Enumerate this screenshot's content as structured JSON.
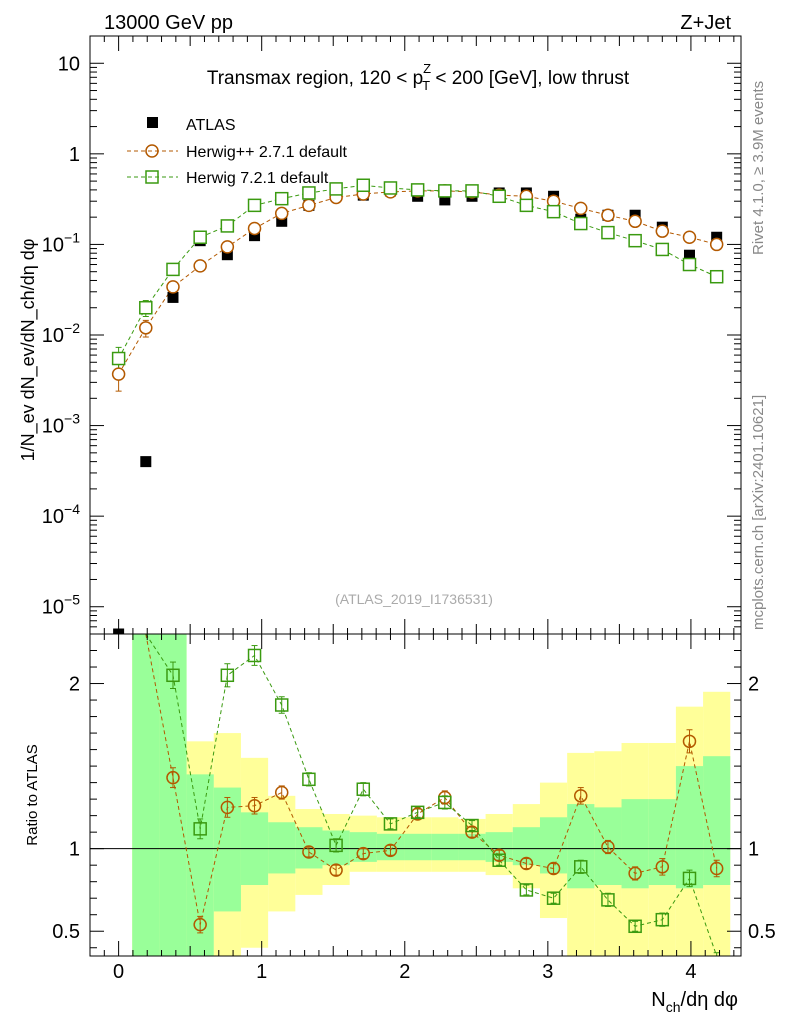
{
  "header": {
    "left": "13000 GeV pp",
    "right": "Z+Jet"
  },
  "side_labels": {
    "upper": "Rivet 4.1.0, ≥ 3.9M events",
    "lower": "mcplots.cern.ch [arXiv:2401.10621]"
  },
  "colors": {
    "atlas": "#000000",
    "herwigpp": "#b35900",
    "herwig7": "#3a9a10",
    "band_inner": "#99ff99",
    "band_outer": "#ffff99"
  },
  "chart_data": [
    {
      "type": "scatter",
      "panel": "main",
      "title": "Transmax region, 120 < p_T^Z < 200 [GeV], low thrust",
      "title_parts": {
        "pre": "Transmax region, 120 < p",
        "sup": "Z",
        "sub": "T",
        "post": " < 200 [GeV], low thrust"
      },
      "watermark": "(ATLAS_2019_I1736531)",
      "ylabel": "1/N_ev dN_ev/dN_ch/dη dφ",
      "yscale": "log",
      "xlim": [
        -0.2,
        4.35
      ],
      "ylim": [
        5e-06,
        20
      ],
      "xticks": [
        0,
        1,
        2,
        3,
        4
      ],
      "ytick_labels": [
        {
          "value": 10,
          "base": "10",
          "exp": ""
        },
        {
          "value": 1,
          "base": "1",
          "exp": ""
        },
        {
          "value": 0.1,
          "base": "10",
          "exp": "−1"
        },
        {
          "value": 0.01,
          "base": "10",
          "exp": "−2"
        },
        {
          "value": 0.001,
          "base": "10",
          "exp": "−3"
        },
        {
          "value": 0.0001,
          "base": "10",
          "exp": "−4"
        },
        {
          "value": 1e-05,
          "base": "10",
          "exp": "−5"
        }
      ],
      "legend": [
        "ATLAS",
        "Herwig++ 2.7.1 default",
        "Herwig 7.2.1 default"
      ],
      "series": [
        {
          "name": "ATLAS",
          "marker": "square-filled",
          "x": [
            0.0,
            0.19,
            0.38,
            0.57,
            0.76,
            0.95,
            1.14,
            1.33,
            1.52,
            1.71,
            1.9,
            2.09,
            2.28,
            2.47,
            2.66,
            2.85,
            3.04,
            3.23,
            3.42,
            3.61,
            3.8,
            3.99,
            4.18
          ],
          "y": [
            2.5e-06,
            0.0004,
            0.026,
            0.11,
            0.077,
            0.125,
            0.18,
            0.27,
            0.42,
            0.35,
            0.39,
            0.34,
            0.31,
            0.34,
            0.37,
            0.37,
            0.34,
            0.19,
            0.21,
            0.21,
            0.155,
            0.076,
            0.12
          ]
        },
        {
          "name": "Herwig++ 2.7.1 default",
          "marker": "circle-open",
          "x": [
            0.0,
            0.19,
            0.38,
            0.57,
            0.76,
            0.95,
            1.14,
            1.33,
            1.52,
            1.71,
            1.9,
            2.09,
            2.28,
            2.47,
            2.66,
            2.85,
            3.04,
            3.23,
            3.42,
            3.61,
            3.8,
            3.99,
            4.18
          ],
          "y": [
            0.0037,
            0.012,
            0.034,
            0.058,
            0.094,
            0.15,
            0.22,
            0.27,
            0.33,
            0.36,
            0.38,
            0.39,
            0.39,
            0.38,
            0.35,
            0.34,
            0.3,
            0.25,
            0.21,
            0.18,
            0.14,
            0.12,
            0.1
          ],
          "yerr": [
            0.0013,
            0.0025,
            0.0035,
            0,
            0,
            0,
            0,
            0,
            0,
            0,
            0,
            0,
            0,
            0,
            0,
            0,
            0,
            0,
            0,
            0,
            0,
            0,
            0
          ]
        },
        {
          "name": "Herwig 7.2.1 default",
          "marker": "square-open",
          "x": [
            0.0,
            0.19,
            0.38,
            0.57,
            0.76,
            0.95,
            1.14,
            1.33,
            1.52,
            1.71,
            1.9,
            2.09,
            2.28,
            2.47,
            2.66,
            2.85,
            3.04,
            3.23,
            3.42,
            3.61,
            3.8,
            3.99,
            4.18
          ],
          "y": [
            0.0055,
            0.02,
            0.053,
            0.12,
            0.16,
            0.27,
            0.32,
            0.37,
            0.41,
            0.45,
            0.42,
            0.4,
            0.39,
            0.39,
            0.34,
            0.27,
            0.23,
            0.17,
            0.135,
            0.11,
            0.088,
            0.06,
            0.044
          ],
          "yerr": [
            0.0018,
            0.004,
            0.006,
            0.01,
            0,
            0,
            0,
            0,
            0,
            0,
            0,
            0,
            0,
            0,
            0,
            0,
            0,
            0,
            0,
            0,
            0,
            0,
            0
          ]
        }
      ]
    },
    {
      "type": "scatter",
      "panel": "ratio",
      "ylabel": "Ratio to ATLAS",
      "xlabel": "N_ch/dη dφ",
      "xlabel_parts": {
        "main": "N",
        "sub": "ch",
        "rest": "/dη dφ"
      },
      "ylim": [
        0.35,
        2.3
      ],
      "yticks": [
        0.5,
        1,
        2
      ],
      "ytick_labels": [
        "0.5",
        "1",
        "2"
      ],
      "bands": {
        "edges": [
          0.095,
          0.285,
          0.475,
          0.665,
          0.855,
          1.045,
          1.235,
          1.425,
          1.615,
          1.805,
          1.995,
          2.185,
          2.375,
          2.565,
          2.755,
          2.945,
          3.135,
          3.325,
          3.515,
          3.705,
          3.895,
          4.085,
          4.275
        ],
        "inner_lo": [
          0.35,
          0.35,
          0.35,
          0.62,
          0.78,
          0.85,
          0.88,
          0.9,
          0.92,
          0.93,
          0.93,
          0.93,
          0.93,
          0.92,
          0.9,
          0.85,
          0.76,
          0.78,
          0.76,
          0.78,
          0.76,
          0.78
        ],
        "inner_hi": [
          2.3,
          2.3,
          1.45,
          1.37,
          1.22,
          1.16,
          1.13,
          1.11,
          1.1,
          1.09,
          1.09,
          1.09,
          1.09,
          1.1,
          1.13,
          1.19,
          1.27,
          1.25,
          1.3,
          1.3,
          1.5,
          1.56
        ],
        "outer_lo": [
          0.35,
          0.35,
          0.35,
          0.35,
          0.4,
          0.62,
          0.72,
          0.78,
          0.86,
          0.86,
          0.86,
          0.86,
          0.86,
          0.84,
          0.76,
          0.58,
          0.35,
          0.35,
          0.35,
          0.35,
          0.35,
          0.35
        ],
        "outer_hi": [
          2.3,
          2.3,
          1.65,
          1.7,
          1.55,
          1.32,
          1.24,
          1.21,
          1.2,
          1.19,
          1.19,
          1.19,
          1.18,
          1.21,
          1.27,
          1.4,
          1.58,
          1.59,
          1.64,
          1.64,
          1.86,
          1.95
        ]
      },
      "series": [
        {
          "name": "Herwig++ 2.7.1 default",
          "x": [
            0.38,
            0.57,
            0.76,
            0.95,
            1.14,
            1.33,
            1.52,
            1.71,
            1.9,
            2.09,
            2.28,
            2.47,
            2.66,
            2.85,
            3.04,
            3.23,
            3.42,
            3.61,
            3.8,
            3.99,
            4.18
          ],
          "y": [
            1.43,
            0.54,
            1.25,
            1.26,
            1.34,
            0.98,
            0.87,
            0.97,
            0.99,
            1.21,
            1.31,
            1.1,
            0.96,
            0.91,
            0.88,
            1.32,
            1.01,
            0.85,
            0.89,
            1.65,
            0.88
          ],
          "yerr": [
            0.06,
            0.05,
            0.06,
            0.05,
            0.04,
            0.03,
            0.03,
            0.03,
            0.03,
            0.03,
            0.04,
            0.03,
            0.03,
            0.03,
            0.03,
            0.05,
            0.04,
            0.04,
            0.05,
            0.07,
            0.05
          ]
        },
        {
          "name": "Herwig 7.2.1 default",
          "x": [
            0.38,
            0.57,
            0.76,
            0.95,
            1.14,
            1.33,
            1.52,
            1.71,
            1.9,
            2.09,
            2.28,
            2.47,
            2.66,
            2.85,
            3.04,
            3.23,
            3.42,
            3.61,
            3.8,
            3.99,
            4.18
          ],
          "y": [
            2.05,
            1.12,
            2.05,
            2.17,
            1.87,
            1.42,
            1.02,
            1.36,
            1.15,
            1.22,
            1.28,
            1.14,
            0.93,
            0.75,
            0.7,
            0.89,
            0.69,
            0.53,
            0.57,
            0.82,
            0.34
          ],
          "yerr": [
            0.08,
            0.06,
            0.07,
            0.06,
            0.05,
            0.04,
            0.04,
            0.04,
            0.03,
            0.03,
            0.04,
            0.03,
            0.03,
            0.03,
            0.03,
            0.04,
            0.04,
            0.03,
            0.04,
            0.05,
            0.03
          ]
        }
      ]
    }
  ]
}
